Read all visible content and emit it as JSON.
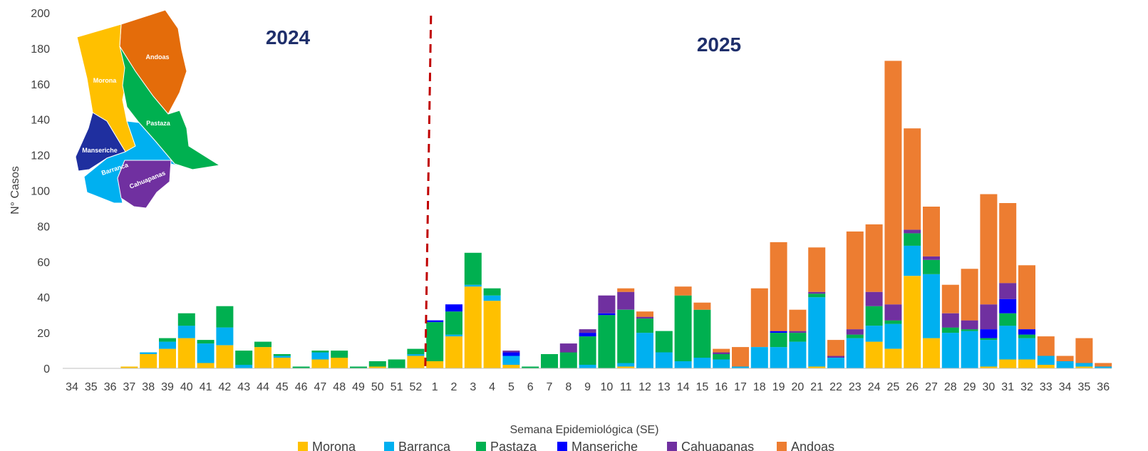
{
  "chart_data": {
    "type": "bar",
    "stacked": true,
    "xlabel": "Semana Epidemiológica (SE)",
    "ylabel": "N° Casos",
    "ylim": [
      0,
      200
    ],
    "yticks": [
      0,
      20,
      40,
      60,
      80,
      100,
      120,
      140,
      160,
      180,
      200
    ],
    "grid": false,
    "legend_position": "bottom",
    "annotations": {
      "year_left": "2024",
      "year_right": "2025"
    },
    "divider_after_category_index": 18,
    "categories": [
      "34",
      "35",
      "36",
      "37",
      "38",
      "39",
      "40",
      "41",
      "42",
      "43",
      "44",
      "45",
      "46",
      "47",
      "48",
      "49",
      "50",
      "51",
      "52",
      "1",
      "2",
      "3",
      "4",
      "5",
      "6",
      "7",
      "8",
      "9",
      "10",
      "11",
      "12",
      "13",
      "14",
      "15",
      "16",
      "17",
      "18",
      "19",
      "20",
      "21",
      "22",
      "23",
      "24",
      "25",
      "26",
      "27",
      "28",
      "29",
      "30",
      "31",
      "32",
      "33",
      "34",
      "35",
      "36"
    ],
    "series": [
      {
        "name": "Morona",
        "color": "#ffc000",
        "values": [
          0,
          0,
          0,
          1,
          8,
          11,
          17,
          3,
          13,
          0,
          12,
          6,
          0,
          5,
          6,
          0,
          1,
          0,
          7,
          4,
          18,
          46,
          38,
          2,
          0,
          0,
          0,
          0,
          0,
          1,
          0,
          0,
          0,
          0,
          0,
          0,
          0,
          0,
          0,
          1,
          0,
          0,
          15,
          11,
          52,
          17,
          0,
          0,
          1,
          5,
          5,
          2,
          0,
          1,
          0
        ]
      },
      {
        "name": "Barranca",
        "color": "#00b0f0",
        "values": [
          0,
          0,
          0,
          0,
          1,
          4,
          7,
          11,
          10,
          2,
          0,
          1,
          0,
          4,
          0,
          0,
          0,
          0,
          1,
          0,
          1,
          1,
          3,
          5,
          0,
          0,
          0,
          2,
          0,
          2,
          20,
          9,
          4,
          6,
          5,
          1,
          12,
          12,
          15,
          39,
          6,
          17,
          9,
          14,
          17,
          36,
          20,
          21,
          15,
          19,
          12,
          5,
          4,
          2,
          1
        ]
      },
      {
        "name": "Pastaza",
        "color": "#00b050",
        "values": [
          0,
          0,
          0,
          0,
          0,
          2,
          7,
          2,
          12,
          8,
          3,
          1,
          1,
          1,
          4,
          1,
          3,
          5,
          3,
          22,
          13,
          18,
          4,
          0,
          1,
          8,
          9,
          16,
          30,
          30,
          8,
          12,
          37,
          27,
          3,
          0,
          0,
          8,
          5,
          2,
          0,
          2,
          11,
          2,
          7,
          8,
          3,
          1,
          1,
          7,
          2,
          0,
          0,
          0,
          0
        ]
      },
      {
        "name": "Manseriche",
        "color": "#0000ff",
        "values": [
          0,
          0,
          0,
          0,
          0,
          0,
          0,
          0,
          0,
          0,
          0,
          0,
          0,
          0,
          0,
          0,
          0,
          0,
          0,
          1,
          4,
          0,
          0,
          2,
          0,
          0,
          0,
          2,
          1,
          0,
          0,
          0,
          0,
          0,
          0,
          0,
          0,
          1,
          0,
          0,
          0,
          0,
          0,
          0,
          0,
          0,
          0,
          0,
          5,
          8,
          3,
          0,
          0,
          0,
          0
        ]
      },
      {
        "name": "Cahuapanas",
        "color": "#7030a0",
        "values": [
          0,
          0,
          0,
          0,
          0,
          0,
          0,
          0,
          0,
          0,
          0,
          0,
          0,
          0,
          0,
          0,
          0,
          0,
          0,
          0,
          0,
          0,
          0,
          1,
          0,
          0,
          5,
          2,
          10,
          10,
          1,
          0,
          0,
          0,
          1,
          0,
          0,
          0,
          1,
          1,
          1,
          3,
          8,
          9,
          2,
          2,
          8,
          5,
          14,
          9,
          0,
          0,
          0,
          0,
          0
        ]
      },
      {
        "name": "Andoas",
        "color": "#ed7d31",
        "values": [
          0,
          0,
          0,
          0,
          0,
          0,
          0,
          0,
          0,
          0,
          0,
          0,
          0,
          0,
          0,
          0,
          0,
          0,
          0,
          0,
          0,
          0,
          0,
          0,
          0,
          0,
          0,
          0,
          0,
          2,
          3,
          0,
          5,
          4,
          2,
          11,
          33,
          50,
          12,
          25,
          9,
          55,
          38,
          137,
          57,
          28,
          16,
          29,
          62,
          45,
          36,
          11,
          3,
          14,
          2
        ]
      }
    ]
  },
  "map": {
    "regions": [
      {
        "name": "Andoas",
        "color": "#e46c0a"
      },
      {
        "name": "Morona",
        "color": "#ffc000"
      },
      {
        "name": "Pastaza",
        "color": "#00b050"
      },
      {
        "name": "Manseriche",
        "color": "#1f2f9f"
      },
      {
        "name": "Barranca",
        "color": "#00b0f0"
      },
      {
        "name": "Cahuapanas",
        "color": "#7030a0"
      }
    ]
  },
  "colors": {
    "divider": "#c00000",
    "axis": "#bfbfbf"
  }
}
